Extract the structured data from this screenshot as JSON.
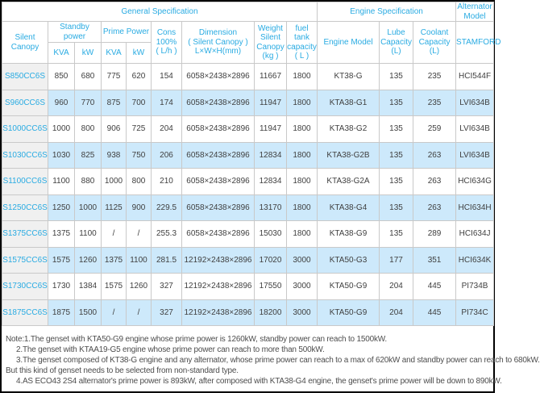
{
  "theme": {
    "accent_blue": "#29abe2",
    "alt_row_bg": "#cde9fb",
    "first_col_bg": "#f0f0f0",
    "grid_line": "#c9c9c9",
    "body_text": "#404040",
    "frame_border": "#000000"
  },
  "header": {
    "groups": {
      "general": "General Specification",
      "engine": "Engine Specification",
      "alternator": "Alternator\nModel"
    },
    "columns": {
      "silent_canopy": "Silent Canopy",
      "standby_power": "Standby\npower",
      "prime_power": "Prime Power",
      "standby_kva": "KVA",
      "standby_kw": "kW",
      "prime_kva": "KVA",
      "prime_kw": "kW",
      "cons": "Cons\n100%\n( L/h )",
      "dimension": "Dimension\n( Silent Canopy )\nL×W×H(mm)",
      "weight": "Weight\nSilent\nCanopy\n(kg )",
      "fuel_tank": "fuel tank\ncapacity\n( L )",
      "engine_model": "Engine Model",
      "lube_capacity": "Lube\nCapacity\n(L)",
      "coolant_capacity": "Coolant\nCapacity\n(L)",
      "stamford": "STAMFORD"
    }
  },
  "rows": [
    [
      "S850CC6S",
      "850",
      "680",
      "775",
      "620",
      "154",
      "6058×2438×2896",
      "11667",
      "1800",
      "KT38-G",
      "135",
      "235",
      "HCI544F"
    ],
    [
      "S960CC6S",
      "960",
      "770",
      "875",
      "700",
      "174",
      "6058×2438×2896",
      "11947",
      "1800",
      "KTA38-G1",
      "135",
      "235",
      "LVI634B"
    ],
    [
      "S1000CC6S",
      "1000",
      "800",
      "906",
      "725",
      "204",
      "6058×2438×2896",
      "11947",
      "1800",
      "KTA38-G2",
      "135",
      "259",
      "LVI634B"
    ],
    [
      "S1030CC6S",
      "1030",
      "825",
      "938",
      "750",
      "206",
      "6058×2438×2896",
      "12834",
      "1800",
      "KTA38-G2B",
      "135",
      "263",
      "LVI634B"
    ],
    [
      "S1100CC6S",
      "1100",
      "880",
      "1000",
      "800",
      "210",
      "6058×2438×2896",
      "12834",
      "1800",
      "KTA38-G2A",
      "135",
      "263",
      "HCI634G"
    ],
    [
      "S1250CC6S",
      "1250",
      "1000",
      "1125",
      "900",
      "229.5",
      "6058×2438×2896",
      "13170",
      "1800",
      "KTA38-G4",
      "135",
      "263",
      "HCI634H"
    ],
    [
      "S1375CC6S",
      "1375",
      "1100",
      "/",
      "/",
      "255.3",
      "6058×2438×2896",
      "15030",
      "1800",
      "KTA38-G9",
      "135",
      "289",
      "HCI634J"
    ],
    [
      "S1575CC6S",
      "1575",
      "1260",
      "1375",
      "1100",
      "281.5",
      "12192×2438×2896",
      "17020",
      "3000",
      "KTA50-G3",
      "177",
      "351",
      "HCI634K"
    ],
    [
      "S1730CC6S",
      "1730",
      "1384",
      "1575",
      "1260",
      "327",
      "12192×2438×2896",
      "17550",
      "3000",
      "KTA50-G9",
      "204",
      "445",
      "PI734B"
    ],
    [
      "S1875CC6S",
      "1875",
      "1500",
      "/",
      "/",
      "327",
      "12192×2438×2896",
      "18200",
      "3000",
      "KTA50-G9",
      "204",
      "445",
      "PI734C"
    ]
  ],
  "notes": [
    {
      "text": "Note:1.The genset with KTA50-G9 engine whose prime power is 1260kW, standby power can reach to 1500kW.",
      "indent": false
    },
    {
      "text": "2.The genset with KTAA19-G5 engine whose prime power can reach to more than 500kW.",
      "indent": true
    },
    {
      "text": "3.The genset composed of KT38-G engine and any alternator, whose prime power can reach to a max of 620kW and standby power can reach to 680kW.",
      "indent": true
    },
    {
      "text": "But this kind of genset needs to be selected from non-standard type.",
      "indent": false
    },
    {
      "text": "4.AS ECO43 2S4 alternator's prime power is 893kW, after composed with KTA38-G4 engine, the genset's prime power will be down to 890kW.",
      "indent": true
    }
  ]
}
